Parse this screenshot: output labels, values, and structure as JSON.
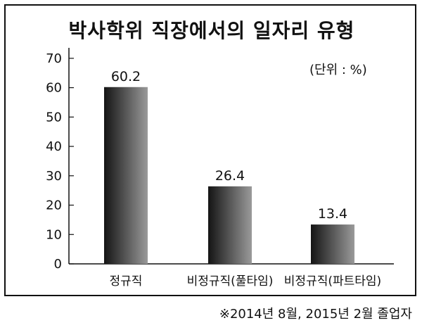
{
  "chart_data": {
    "type": "bar",
    "title": "박사학위 직장에서의 일자리 유형",
    "unit_note": "(단위 : %)",
    "footnote": "※2014년 8월, 2015년 2월 졸업자",
    "categories": [
      "정규직",
      "비정규직(풀타임)",
      "비정규직(파트타임)"
    ],
    "values": [
      60.2,
      26.4,
      13.4
    ],
    "value_labels": [
      "60.2",
      "26.4",
      "13.4"
    ],
    "yticks": [
      0,
      10,
      20,
      30,
      40,
      50,
      60,
      70
    ],
    "ylim": [
      0,
      75
    ],
    "xlabel": "",
    "ylabel": "",
    "grid": false,
    "colors": {
      "bar_dark": "#141414",
      "bar_light": "#9a9a9a",
      "axis": "#111111"
    }
  }
}
